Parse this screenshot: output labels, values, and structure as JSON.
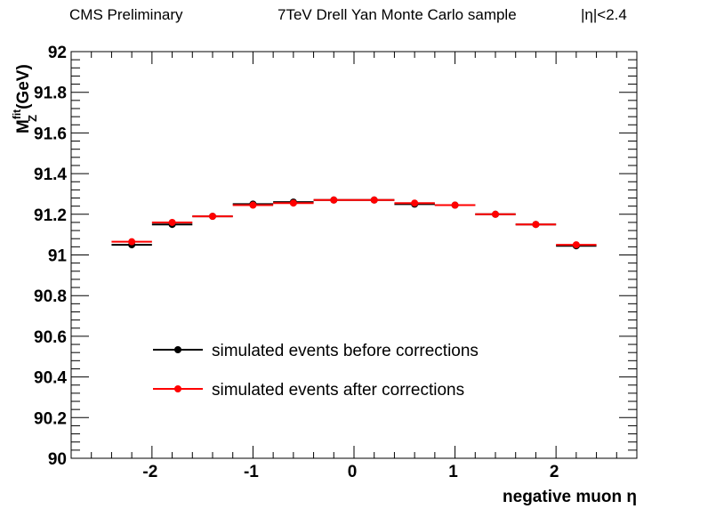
{
  "header": {
    "left": "CMS Preliminary",
    "center": "7TeV Drell Yan Monte Carlo sample",
    "right": "|η|<2.4"
  },
  "chart_data": {
    "type": "scatter",
    "xlabel": "negative muon η",
    "ylabel_main": "M",
    "ylabel_sup": "fit",
    "ylabel_sub": "Z",
    "ylabel_unit": "(GeV)",
    "xlim": [
      -2.8,
      2.8
    ],
    "ylim": [
      90,
      92
    ],
    "x_ticks": [
      -2,
      -1,
      0,
      1,
      2
    ],
    "x_tick_labels": [
      "-2",
      "-1",
      "0",
      "1",
      "2"
    ],
    "y_ticks": [
      90,
      90.2,
      90.4,
      90.6,
      90.8,
      91,
      91.2,
      91.4,
      91.6,
      91.8,
      92
    ],
    "y_tick_labels": [
      "90",
      "90.2",
      "90.4",
      "90.6",
      "90.8",
      "91",
      "91.2",
      "91.4",
      "91.6",
      "91.8",
      "92"
    ],
    "bin_half_width": 0.2,
    "x": [
      -2.2,
      -1.8,
      -1.4,
      -1.0,
      -0.6,
      -0.2,
      0.2,
      0.6,
      1.0,
      1.4,
      1.8,
      2.2
    ],
    "series": [
      {
        "name": "simulated events before corrections",
        "color": "#000000",
        "values": [
          91.05,
          91.15,
          91.19,
          91.25,
          91.26,
          91.27,
          91.27,
          91.25,
          91.245,
          91.2,
          91.15,
          91.045
        ]
      },
      {
        "name": "simulated events after corrections",
        "color": "#ff0000",
        "values": [
          91.065,
          91.16,
          91.19,
          91.245,
          91.255,
          91.27,
          91.27,
          91.255,
          91.245,
          91.2,
          91.15,
          91.05
        ]
      }
    ],
    "legend_position": "bottom-left",
    "grid": false
  }
}
